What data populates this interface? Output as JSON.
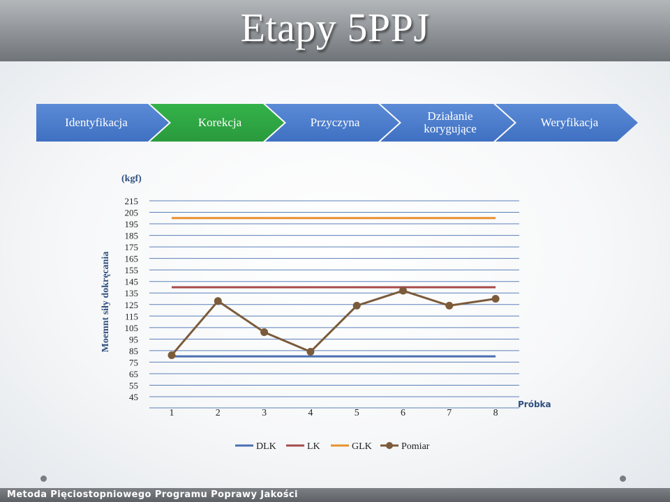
{
  "slide": {
    "title": "Etapy 5PPJ",
    "footer": "Metoda Pięciostopniowego Programu Poprawy Jakości"
  },
  "stages": [
    {
      "label": "Identyfikacja",
      "color": "#4a7bcc",
      "active": false
    },
    {
      "label": "Korekcja",
      "color": "#2fa845",
      "active": true
    },
    {
      "label": "Przyczyna",
      "color": "#4a7bcc",
      "active": false
    },
    {
      "label": "Działanie\nkorygujące",
      "color": "#4a7bcc",
      "active": false
    },
    {
      "label": "Weryfikacja",
      "color": "#4a7bcc",
      "active": false
    }
  ],
  "chart_data": {
    "type": "line",
    "unit_label": "(kgf)",
    "ylabel": "Moemnt siły dokręcania",
    "xlabel": "Próbka",
    "categories": [
      "1",
      "2",
      "3",
      "4",
      "5",
      "6",
      "7",
      "8"
    ],
    "yticks": [
      "215",
      "205",
      "195",
      "185",
      "175",
      "165",
      "155",
      "145",
      "135",
      "125",
      "115",
      "105",
      "95",
      "85",
      "75",
      "65",
      "55",
      "45"
    ],
    "ylim": [
      45,
      215
    ],
    "series": [
      {
        "name": "DLK",
        "values": [
          80,
          80,
          80,
          80,
          80,
          80,
          80,
          80
        ],
        "color": "#4a6fb0",
        "marker": false
      },
      {
        "name": "LK",
        "values": [
          140,
          140,
          140,
          140,
          140,
          140,
          140,
          140
        ],
        "color": "#a54a4a",
        "marker": false
      },
      {
        "name": "GLK",
        "values": [
          200,
          200,
          200,
          200,
          200,
          200,
          200,
          200
        ],
        "color": "#e8902e",
        "marker": false
      },
      {
        "name": "Pomiar",
        "values": [
          81,
          128,
          101,
          84,
          124,
          137,
          124,
          130
        ],
        "color": "#7b5b3a",
        "marker": true
      }
    ],
    "grid": true,
    "legend_position": "bottom"
  }
}
